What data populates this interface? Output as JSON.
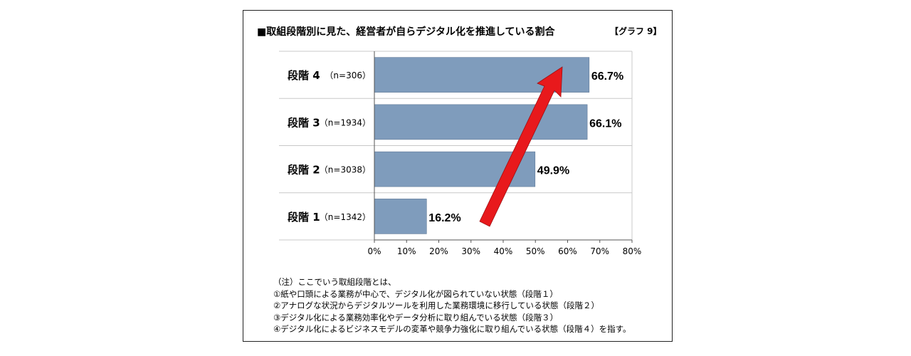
{
  "title": "■取組段階別に見た、経営者が自らデジタル化を推進している割合",
  "tag": "【グラフ 9】",
  "chart_data": {
    "type": "bar",
    "orientation": "horizontal",
    "categories": [
      {
        "stage": "段階 4",
        "n": "（n=306）",
        "value": 66.7,
        "label": "66.7%"
      },
      {
        "stage": "段階 3",
        "n": "（n=1934）",
        "value": 66.1,
        "label": "66.1%"
      },
      {
        "stage": "段階 2",
        "n": "（n=3038）",
        "value": 49.9,
        "label": "49.9%"
      },
      {
        "stage": "段階 1",
        "n": "（n=1342）",
        "value": 16.2,
        "label": "16.2%"
      }
    ],
    "xlim": [
      0,
      80
    ],
    "xticks": [
      "0%",
      "10%",
      "20%",
      "30%",
      "40%",
      "50%",
      "60%",
      "70%",
      "80%"
    ],
    "bar_color": "#7f9cbc",
    "arrow_color": "#e8191c",
    "grid": "horizontal separators"
  },
  "notes": {
    "heading": "（注）ここでいう取組段階とは、",
    "lines": [
      "①紙や口頭による業務が中心で、デジタル化が図られていない状態（段階１）",
      "②アナログな状況からデジタルツールを利用した業務環境に移行している状態（段階２）",
      "③デジタル化による業務効率化やデータ分析に取り組んでいる状態（段階３）",
      "④デジタル化によるビジネスモデルの変革や競争力強化に取り組んでいる状態（段階４）を指す。"
    ]
  }
}
